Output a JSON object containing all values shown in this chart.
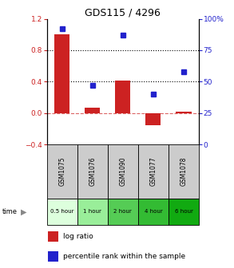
{
  "title": "GDS115 / 4296",
  "samples": [
    "GSM1075",
    "GSM1076",
    "GSM1090",
    "GSM1077",
    "GSM1078"
  ],
  "time_labels": [
    "0.5 hour",
    "1 hour",
    "2 hour",
    "4 hour",
    "6 hour"
  ],
  "log_ratio": [
    1.0,
    0.07,
    0.42,
    -0.15,
    0.02
  ],
  "percentile": [
    92,
    47,
    87,
    40,
    58
  ],
  "bar_color": "#cc2222",
  "dot_color": "#2222cc",
  "ylim_left": [
    -0.4,
    1.2
  ],
  "ylim_right": [
    0,
    100
  ],
  "yticks_left": [
    -0.4,
    0.0,
    0.4,
    0.8,
    1.2
  ],
  "yticks_right": [
    0,
    25,
    50,
    75,
    100
  ],
  "yticklabels_right": [
    "0",
    "25",
    "50",
    "75",
    "100%"
  ],
  "hlines": [
    0.8,
    0.4
  ],
  "zero_line_color": "#cc2222",
  "time_bg_colors": [
    "#ddffdd",
    "#99ee99",
    "#55cc55",
    "#33bb33",
    "#11aa11"
  ],
  "sample_bg_color": "#cccccc",
  "legend_bar_label": "log ratio",
  "legend_dot_label": "percentile rank within the sample"
}
